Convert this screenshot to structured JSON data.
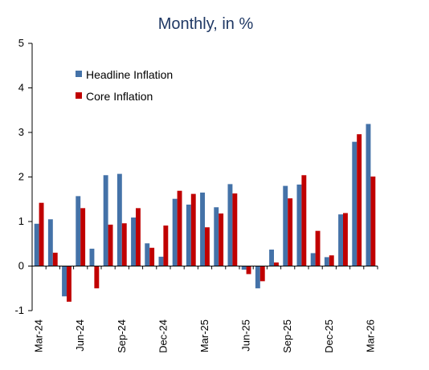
{
  "chart_data": {
    "type": "bar",
    "title": "Monthly, in %",
    "xlabel": "",
    "ylabel": "",
    "ylim": [
      -1,
      5
    ],
    "yticks": [
      -1,
      0,
      1,
      2,
      3,
      4,
      5
    ],
    "x_tick_labels": [
      "Mar-24",
      "Jun-24",
      "Sep-24",
      "Dec-24",
      "Mar-25",
      "Jun-25",
      "Sep-25",
      "Dec-25",
      "Mar-26"
    ],
    "categories": [
      "Mar-24",
      "Apr-24",
      "May-24",
      "Jun-24",
      "Jul-24",
      "Aug-24",
      "Sep-24",
      "Oct-24",
      "Nov-24",
      "Dec-24",
      "Jan-25",
      "Feb-25",
      "Mar-25",
      "Apr-25",
      "May-25",
      "Jun-25",
      "Jul-25",
      "Aug-25",
      "Sep-25",
      "Oct-25",
      "Nov-25",
      "Dec-25",
      "Jan-26",
      "Feb-26",
      "Mar-26"
    ],
    "series": [
      {
        "name": "Headline Inflation",
        "color": "#4472a8",
        "values": [
          0.95,
          1.05,
          -0.68,
          1.57,
          0.39,
          2.04,
          2.07,
          1.09,
          0.51,
          0.21,
          1.51,
          1.38,
          1.65,
          1.32,
          1.84,
          -0.08,
          -0.5,
          0.37,
          1.8,
          1.83,
          0.29,
          0.2,
          1.16,
          2.79,
          3.19
        ]
      },
      {
        "name": "Core Inflation",
        "color": "#c00000",
        "values": [
          1.42,
          0.3,
          -0.8,
          1.3,
          -0.5,
          0.93,
          0.96,
          1.3,
          0.41,
          0.91,
          1.69,
          1.62,
          0.87,
          1.18,
          1.63,
          -0.18,
          -0.34,
          0.08,
          1.52,
          2.04,
          0.79,
          0.24,
          1.19,
          2.96,
          2.01
        ]
      }
    ],
    "legend": "top-left",
    "grid": false
  }
}
